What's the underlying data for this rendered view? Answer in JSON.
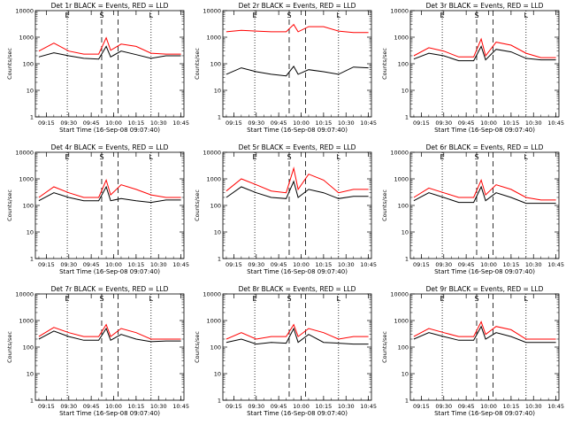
{
  "figure": {
    "panels": [
      {
        "title": "Det 1r BLACK = Events, RED = LLD",
        "xticks": [
          "09:15",
          "09:30",
          "09:45",
          "10:00",
          "10:15",
          "10:30",
          "10:45"
        ],
        "xlabel": "Start Time (16-Sep-08 09:07:40)"
      },
      {
        "title": "Det 2r BLACK = Events, RED = LLD",
        "xticks": [
          "09:15",
          "09:30",
          "09:45",
          "10:00",
          "10:15",
          "10:30",
          "10:45"
        ],
        "xlabel": "Start Time (16-Sep-08 09:07:40)"
      },
      {
        "title": "Det 3r BLACK = Events, RED = LLD",
        "xticks": [
          "09:15",
          "09:30",
          "09:45",
          "10:00",
          "10:15",
          "10:30",
          "10:45"
        ],
        "xlabel": "Start Time (16-Sep-08 09:07:40)"
      },
      {
        "title": "Det 4r BLACK = Events, RED = LLD",
        "xticks": [
          "09:15",
          "09:30",
          "09:45",
          "10:00",
          "10:15",
          "10:30",
          "10:45"
        ],
        "xlabel": "Start Time (16-Sep-08 09:07:40)"
      },
      {
        "title": "Det 5r BLACK = Events, RED = LLD",
        "xticks": [
          "09:15",
          "09:30",
          "09:45",
          "10:00",
          "10:15",
          "10:30",
          "10:45"
        ],
        "xlabel": "Start Time (16-Sep-08 09:07:40)"
      },
      {
        "title": "Det 6r BLACK = Events, RED = LLD",
        "xticks": [
          "09:15",
          "09:30",
          "09:45",
          "10:00",
          "10:15",
          "10:30",
          "10:45"
        ],
        "xlabel": "Start Time (16-Sep-08 09:07:40)"
      },
      {
        "title": "Det 7r BLACK = Events, RED = LLD",
        "xticks": [
          "09:15",
          "09:30",
          "09:45",
          "10:00",
          "10:15",
          "10:30",
          "10:45"
        ],
        "xlabel": "Start Time (16-Sep-08 09:07:40)"
      },
      {
        "title": "Det 8r BLACK = Events, RED = LLD",
        "xticks": [
          "09:15",
          "09:30",
          "09:45",
          "10:00",
          "10:15",
          "10:30",
          "10:45"
        ],
        "xlabel": "Start Time (16-Sep-08 09:07:40)"
      },
      {
        "title": "Det 9r BLACK = Events, RED = LLD",
        "xticks": [
          "09:15",
          "09:30",
          "09:45",
          "10:00",
          "10:15",
          "10:30",
          "10:45"
        ],
        "xlabel": "Start Time (16-Sep-08 09:07:40)"
      }
    ],
    "ylabel": "Counts/sec",
    "yticks": [
      "1",
      "10",
      "100",
      "1000",
      "10000"
    ],
    "markers": {
      "E": "E",
      "S": "S",
      "L": "L"
    }
  },
  "chart_data": [
    {
      "type": "line",
      "title": "Det 1r BLACK = Events, RED = LLD",
      "ylabel": "Counts/sec",
      "xlabel": "Start Time (16-Sep-08 09:07:40)",
      "yscale": "log",
      "ylim": [
        1,
        10000
      ],
      "xlim": [
        "09:07:40",
        "10:47:00"
      ],
      "x": [
        "09:10",
        "09:20",
        "09:30",
        "09:40",
        "09:50",
        "09:55",
        "09:58",
        "10:05",
        "10:15",
        "10:25",
        "10:35",
        "10:45"
      ],
      "series": [
        {
          "name": "Events",
          "color": "#000000",
          "values": [
            180,
            260,
            200,
            160,
            150,
            450,
            180,
            300,
            220,
            160,
            200,
            200
          ]
        },
        {
          "name": "LLD",
          "color": "#ff0000",
          "values": [
            300,
            600,
            300,
            230,
            230,
            950,
            320,
            550,
            450,
            250,
            230,
            230
          ]
        }
      ]
    },
    {
      "type": "line",
      "title": "Det 2r BLACK = Events, RED = LLD",
      "ylabel": "Counts/sec",
      "xlabel": "Start Time (16-Sep-08 09:07:40)",
      "yscale": "log",
      "ylim": [
        1,
        10000
      ],
      "xlim": [
        "09:07:40",
        "10:47:00"
      ],
      "x": [
        "09:10",
        "09:20",
        "09:30",
        "09:40",
        "09:50",
        "09:55",
        "09:58",
        "10:05",
        "10:15",
        "10:25",
        "10:35",
        "10:45"
      ],
      "series": [
        {
          "name": "Events",
          "color": "#000000",
          "values": [
            40,
            70,
            50,
            40,
            35,
            80,
            40,
            60,
            50,
            40,
            75,
            70
          ]
        },
        {
          "name": "LLD",
          "color": "#ff0000",
          "values": [
            1600,
            1800,
            1700,
            1600,
            1600,
            3000,
            1600,
            2500,
            2500,
            1700,
            1500,
            1500
          ]
        }
      ]
    },
    {
      "type": "line",
      "title": "Det 3r BLACK = Events, RED = LLD",
      "ylabel": "Counts/sec",
      "xlabel": "Start Time (16-Sep-08 09:07:40)",
      "yscale": "log",
      "ylim": [
        1,
        10000
      ],
      "xlim": [
        "09:07:40",
        "10:47:00"
      ],
      "x": [
        "09:10",
        "09:20",
        "09:30",
        "09:40",
        "09:50",
        "09:55",
        "09:58",
        "10:05",
        "10:15",
        "10:25",
        "10:35",
        "10:45"
      ],
      "series": [
        {
          "name": "Events",
          "color": "#000000",
          "values": [
            150,
            250,
            200,
            130,
            130,
            450,
            140,
            350,
            280,
            160,
            140,
            140
          ]
        },
        {
          "name": "LLD",
          "color": "#ff0000",
          "values": [
            200,
            400,
            300,
            180,
            180,
            850,
            200,
            650,
            500,
            250,
            170,
            170
          ]
        }
      ]
    },
    {
      "type": "line",
      "title": "Det 4r BLACK = Events, RED = LLD",
      "ylabel": "Counts/sec",
      "xlabel": "Start Time (16-Sep-08 09:07:40)",
      "yscale": "log",
      "ylim": [
        1,
        10000
      ],
      "xlim": [
        "09:07:40",
        "10:47:00"
      ],
      "x": [
        "09:10",
        "09:20",
        "09:30",
        "09:40",
        "09:50",
        "09:55",
        "09:58",
        "10:05",
        "10:15",
        "10:25",
        "10:35",
        "10:45"
      ],
      "series": [
        {
          "name": "Events",
          "color": "#000000",
          "values": [
            150,
            300,
            200,
            150,
            150,
            500,
            150,
            180,
            150,
            130,
            160,
            160
          ]
        },
        {
          "name": "LLD",
          "color": "#ff0000",
          "values": [
            200,
            500,
            300,
            200,
            200,
            900,
            250,
            600,
            400,
            250,
            200,
            200
          ]
        }
      ]
    },
    {
      "type": "line",
      "title": "Det 5r BLACK = Events, RED = LLD",
      "ylabel": "Counts/sec",
      "xlabel": "Start Time (16-Sep-08 09:07:40)",
      "yscale": "log",
      "ylim": [
        1,
        10000
      ],
      "xlim": [
        "09:07:40",
        "10:47:00"
      ],
      "x": [
        "09:10",
        "09:20",
        "09:30",
        "09:40",
        "09:50",
        "09:55",
        "09:58",
        "10:05",
        "10:15",
        "10:25",
        "10:35",
        "10:45"
      ],
      "series": [
        {
          "name": "Events",
          "color": "#000000",
          "values": [
            200,
            500,
            300,
            200,
            180,
            800,
            200,
            400,
            300,
            180,
            220,
            220
          ]
        },
        {
          "name": "LLD",
          "color": "#ff0000",
          "values": [
            350,
            1000,
            600,
            350,
            300,
            2500,
            400,
            1500,
            900,
            300,
            400,
            400
          ]
        }
      ]
    },
    {
      "type": "line",
      "title": "Det 6r BLACK = Events, RED = LLD",
      "ylabel": "Counts/sec",
      "xlabel": "Start Time (16-Sep-08 09:07:40)",
      "yscale": "log",
      "ylim": [
        1,
        10000
      ],
      "xlim": [
        "09:07:40",
        "10:47:00"
      ],
      "x": [
        "09:10",
        "09:20",
        "09:30",
        "09:40",
        "09:50",
        "09:55",
        "09:58",
        "10:05",
        "10:15",
        "10:25",
        "10:35",
        "10:45"
      ],
      "series": [
        {
          "name": "Events",
          "color": "#000000",
          "values": [
            150,
            300,
            200,
            130,
            130,
            500,
            150,
            300,
            200,
            120,
            120,
            120
          ]
        },
        {
          "name": "LLD",
          "color": "#ff0000",
          "values": [
            200,
            450,
            300,
            200,
            200,
            900,
            250,
            600,
            400,
            200,
            160,
            160
          ]
        }
      ]
    },
    {
      "type": "line",
      "title": "Det 7r BLACK = Events, RED = LLD",
      "ylabel": "Counts/sec",
      "xlabel": "Start Time (16-Sep-08 09:07:40)",
      "yscale": "log",
      "ylim": [
        1,
        10000
      ],
      "xlim": [
        "09:07:40",
        "10:47:00"
      ],
      "x": [
        "09:10",
        "09:20",
        "09:30",
        "09:40",
        "09:50",
        "09:55",
        "09:58",
        "10:05",
        "10:15",
        "10:25",
        "10:35",
        "10:45"
      ],
      "series": [
        {
          "name": "Events",
          "color": "#000000",
          "values": [
            200,
            400,
            250,
            180,
            180,
            500,
            180,
            300,
            200,
            160,
            170,
            170
          ]
        },
        {
          "name": "LLD",
          "color": "#ff0000",
          "values": [
            250,
            550,
            350,
            250,
            250,
            700,
            250,
            500,
            350,
            200,
            200,
            200
          ]
        }
      ]
    },
    {
      "type": "line",
      "title": "Det 8r BLACK = Events, RED = LLD",
      "ylabel": "Counts/sec",
      "xlabel": "Start Time (16-Sep-08 09:07:40)",
      "yscale": "log",
      "ylim": [
        1,
        10000
      ],
      "xlim": [
        "09:07:40",
        "10:47:00"
      ],
      "x": [
        "09:10",
        "09:20",
        "09:30",
        "09:40",
        "09:50",
        "09:55",
        "09:58",
        "10:05",
        "10:15",
        "10:25",
        "10:35",
        "10:45"
      ],
      "series": [
        {
          "name": "Events",
          "color": "#000000",
          "values": [
            150,
            200,
            130,
            150,
            140,
            500,
            150,
            300,
            150,
            140,
            130,
            130
          ]
        },
        {
          "name": "LLD",
          "color": "#ff0000",
          "values": [
            200,
            350,
            200,
            250,
            250,
            700,
            250,
            500,
            350,
            200,
            250,
            250
          ]
        }
      ]
    },
    {
      "type": "line",
      "title": "Det 9r BLACK = Events, RED = LLD",
      "ylabel": "Counts/sec",
      "xlabel": "Start Time (16-Sep-08 09:07:40)",
      "yscale": "log",
      "ylim": [
        1,
        10000
      ],
      "xlim": [
        "09:07:40",
        "10:47:00"
      ],
      "x": [
        "09:10",
        "09:20",
        "09:30",
        "09:40",
        "09:50",
        "09:55",
        "09:58",
        "10:05",
        "10:15",
        "10:25",
        "10:35",
        "10:45"
      ],
      "series": [
        {
          "name": "Events",
          "color": "#000000",
          "values": [
            200,
            350,
            250,
            180,
            180,
            600,
            200,
            350,
            250,
            150,
            150,
            150
          ]
        },
        {
          "name": "LLD",
          "color": "#ff0000",
          "values": [
            250,
            500,
            350,
            250,
            250,
            900,
            300,
            600,
            450,
            200,
            200,
            200
          ]
        }
      ]
    }
  ]
}
